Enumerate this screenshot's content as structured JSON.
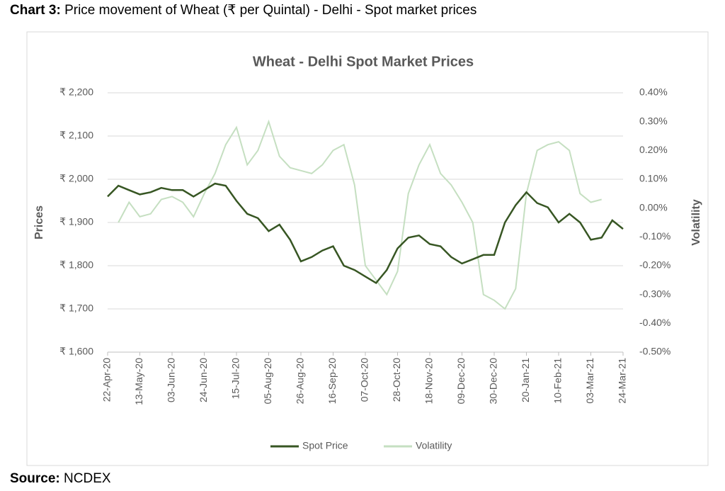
{
  "heading": {
    "label": "Chart 3:",
    "text": "Price movement of Wheat (₹ per Quintal) - Delhi - Spot market prices"
  },
  "source": {
    "label": "Source:",
    "text": "NCDEX"
  },
  "chart_data": {
    "type": "line",
    "title": "Wheat - Delhi Spot Market Prices",
    "y_label": "Prices",
    "y2_label": "Volatility",
    "x": [
      "2020-04-22",
      "2020-04-29",
      "2020-05-06",
      "2020-05-13",
      "2020-05-20",
      "2020-05-27",
      "2020-06-03",
      "2020-06-10",
      "2020-06-17",
      "2020-06-24",
      "2020-07-01",
      "2020-07-08",
      "2020-07-15",
      "2020-07-22",
      "2020-07-29",
      "2020-08-05",
      "2020-08-12",
      "2020-08-19",
      "2020-08-26",
      "2020-09-02",
      "2020-09-09",
      "2020-09-16",
      "2020-09-23",
      "2020-09-30",
      "2020-10-07",
      "2020-10-14",
      "2020-10-21",
      "2020-10-28",
      "2020-11-04",
      "2020-11-11",
      "2020-11-18",
      "2020-11-25",
      "2020-12-02",
      "2020-12-09",
      "2020-12-16",
      "2020-12-23",
      "2020-12-30",
      "2021-01-06",
      "2021-01-13",
      "2021-01-20",
      "2021-01-27",
      "2021-02-03",
      "2021-02-10",
      "2021-02-17",
      "2021-02-24",
      "2021-03-03",
      "2021-03-10",
      "2021-03-17",
      "2021-03-24"
    ],
    "series": [
      {
        "name": "Spot Price",
        "color": "#375623",
        "axis": "y",
        "values": [
          1960,
          1985,
          1975,
          1965,
          1970,
          1980,
          1975,
          1975,
          1960,
          1975,
          1990,
          1985,
          1950,
          1920,
          1910,
          1880,
          1895,
          1860,
          1810,
          1820,
          1835,
          1845,
          1800,
          1790,
          1775,
          1760,
          1790,
          1840,
          1865,
          1870,
          1850,
          1845,
          1820,
          1805,
          1815,
          1825,
          1825,
          1900,
          1940,
          1970,
          1945,
          1935,
          1900,
          1920,
          1900,
          1860,
          1865,
          1905,
          1885
        ]
      },
      {
        "name": "Volatility",
        "color": "#c5dfc1",
        "axis": "y2",
        "values": [
          null,
          -0.05,
          0.02,
          -0.03,
          -0.02,
          0.03,
          0.04,
          0.02,
          -0.03,
          0.05,
          0.12,
          0.22,
          0.28,
          0.15,
          0.2,
          0.3,
          0.18,
          0.14,
          0.13,
          0.12,
          0.15,
          0.2,
          0.22,
          0.08,
          -0.2,
          -0.25,
          -0.3,
          -0.22,
          0.05,
          0.15,
          0.22,
          0.12,
          0.08,
          0.02,
          -0.05,
          -0.3,
          -0.32,
          -0.35,
          -0.28,
          0.05,
          0.2,
          0.22,
          0.23,
          0.2,
          0.05,
          0.02,
          0.03,
          null,
          null
        ]
      }
    ],
    "xlim": [
      "2020-04-22",
      "2021-03-24"
    ],
    "xticks": [
      {
        "value": "2020-04-22",
        "label": "22-Apr-20"
      },
      {
        "value": "2020-05-13",
        "label": "13-May-20"
      },
      {
        "value": "2020-06-03",
        "label": "03-Jun-20"
      },
      {
        "value": "2020-06-24",
        "label": "24-Jun-20"
      },
      {
        "value": "2020-07-15",
        "label": "15-Jul-20"
      },
      {
        "value": "2020-08-05",
        "label": "05-Aug-20"
      },
      {
        "value": "2020-08-26",
        "label": "26-Aug-20"
      },
      {
        "value": "2020-09-16",
        "label": "16-Sep-20"
      },
      {
        "value": "2020-10-07",
        "label": "07-Oct-20"
      },
      {
        "value": "2020-10-28",
        "label": "28-Oct-20"
      },
      {
        "value": "2020-11-18",
        "label": "18-Nov-20"
      },
      {
        "value": "2020-12-09",
        "label": "09-Dec-20"
      },
      {
        "value": "2020-12-30",
        "label": "30-Dec-20"
      },
      {
        "value": "2021-01-20",
        "label": "20-Jan-21"
      },
      {
        "value": "2021-02-10",
        "label": "10-Feb-21"
      },
      {
        "value": "2021-03-03",
        "label": "03-Mar-21"
      },
      {
        "value": "2021-03-24",
        "label": "24-Mar-21"
      }
    ],
    "ylim": [
      1600,
      2200
    ],
    "yticks": [
      {
        "value": 1600,
        "label": "₹ 1,600"
      },
      {
        "value": 1700,
        "label": "₹ 1,700"
      },
      {
        "value": 1800,
        "label": "₹ 1,800"
      },
      {
        "value": 1900,
        "label": "₹ 1,900"
      },
      {
        "value": 2000,
        "label": "₹ 2,000"
      },
      {
        "value": 2100,
        "label": "₹ 2,100"
      },
      {
        "value": 2200,
        "label": "₹ 2,200"
      }
    ],
    "y2lim": [
      -0.5,
      0.4
    ],
    "y2ticks": [
      {
        "value": -0.5,
        "label": "-0.50%"
      },
      {
        "value": -0.4,
        "label": "-0.40%"
      },
      {
        "value": -0.3,
        "label": "-0.30%"
      },
      {
        "value": -0.2,
        "label": "-0.20%"
      },
      {
        "value": -0.1,
        "label": "-0.10%"
      },
      {
        "value": 0,
        "label": "0.00%"
      },
      {
        "value": 0.1,
        "label": "0.10%"
      },
      {
        "value": 0.2,
        "label": "0.20%"
      },
      {
        "value": 0.3,
        "label": "0.30%"
      },
      {
        "value": 0.4,
        "label": "0.40%"
      }
    ],
    "grid": true,
    "legend": "bottom"
  }
}
